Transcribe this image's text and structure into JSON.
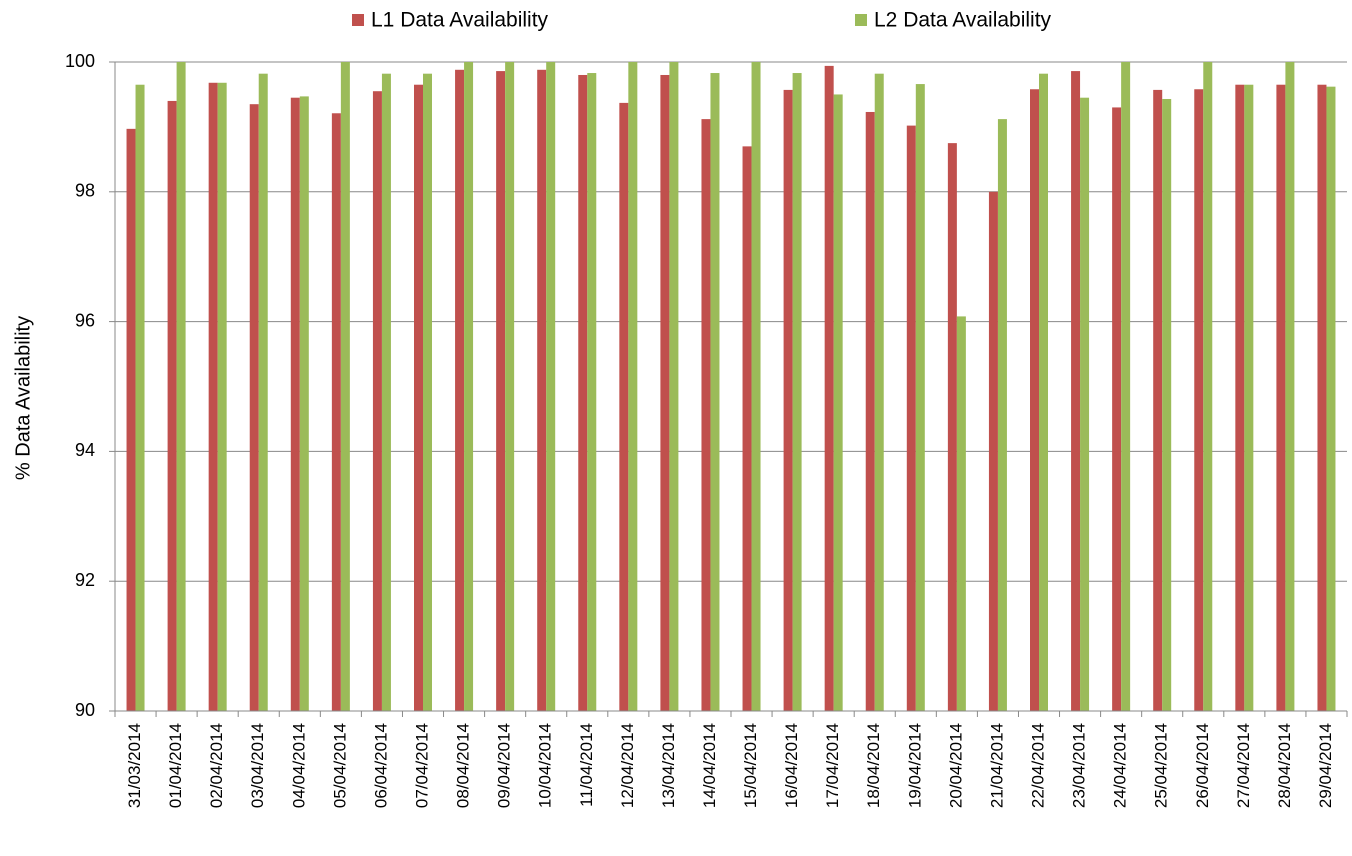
{
  "chart_data": {
    "type": "bar",
    "y_label": "% Data Availability",
    "categories": [
      "31/03/2014",
      "01/04/2014",
      "02/04/2014",
      "03/04/2014",
      "04/04/2014",
      "05/04/2014",
      "06/04/2014",
      "07/04/2014",
      "08/04/2014",
      "09/04/2014",
      "10/04/2014",
      "11/04/2014",
      "12/04/2014",
      "13/04/2014",
      "14/04/2014",
      "15/04/2014",
      "16/04/2014",
      "17/04/2014",
      "18/04/2014",
      "19/04/2014",
      "20/04/2014",
      "21/04/2014",
      "22/04/2014",
      "23/04/2014",
      "24/04/2014",
      "25/04/2014",
      "26/04/2014",
      "27/04/2014",
      "28/04/2014",
      "29/04/2014"
    ],
    "series": [
      {
        "name": "L1 Data Availability",
        "color": "#c0504d",
        "values": [
          98.97,
          99.4,
          99.68,
          99.35,
          99.45,
          99.21,
          99.55,
          99.65,
          99.88,
          99.86,
          99.88,
          99.8,
          99.37,
          99.8,
          99.12,
          98.7,
          99.57,
          99.94,
          99.23,
          99.02,
          98.75,
          98.0,
          99.58,
          99.86,
          99.3,
          99.57,
          99.58,
          99.65,
          99.65,
          99.65
        ]
      },
      {
        "name": "L2 Data Availability",
        "color": "#9bbb59",
        "values": [
          99.65,
          100,
          99.68,
          99.82,
          99.47,
          100,
          99.82,
          99.82,
          100,
          100,
          100,
          99.83,
          100,
          100,
          99.83,
          100,
          99.83,
          99.5,
          99.82,
          99.66,
          96.08,
          99.12,
          99.82,
          99.45,
          100,
          99.43,
          100,
          99.65,
          100,
          99.62
        ]
      }
    ],
    "ylim": [
      90,
      100
    ],
    "yticks": [
      90,
      92,
      94,
      96,
      98,
      100
    ],
    "grid": true,
    "legend": "top"
  }
}
